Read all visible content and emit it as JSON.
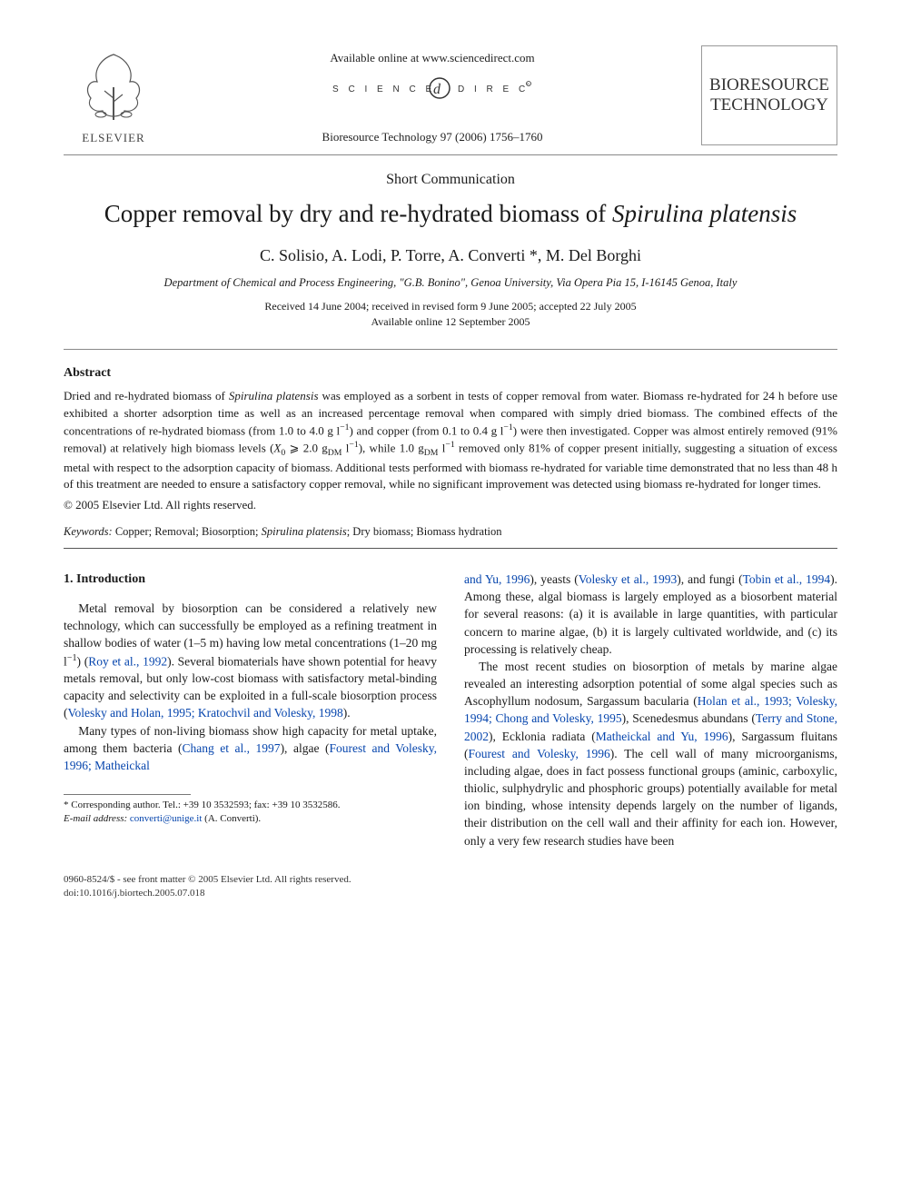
{
  "header": {
    "publisher": "ELSEVIER",
    "available_line": "Available online at www.sciencedirect.com",
    "sciencedirect_label": "SCIENCE DIRECT",
    "citation": "Bioresource Technology 97 (2006) 1756–1760",
    "journal_name_line1": "BIORESOURCE",
    "journal_name_line2": "TECHNOLOGY"
  },
  "article": {
    "type": "Short Communication",
    "title_pre": "Copper removal by dry and re-hydrated biomass of ",
    "title_species": "Spirulina platensis",
    "authors": "C. Solisio, A. Lodi, P. Torre, A. Converti *, M. Del Borghi",
    "affiliation": "Department of Chemical and Process Engineering, \"G.B. Bonino\", Genoa University, Via Opera Pia 15, I-16145 Genoa, Italy",
    "dates_line1": "Received 14 June 2004; received in revised form 9 June 2005; accepted 22 July 2005",
    "dates_line2": "Available online 12 September 2005"
  },
  "abstract": {
    "heading": "Abstract",
    "body_html": "Dried and re-hydrated biomass of <span class=\"italic\">Spirulina platensis</span> was employed as a sorbent in tests of copper removal from water. Biomass re-hydrated for 24 h before use exhibited a shorter adsorption time as well as an increased percentage removal when compared with simply dried biomass. The combined effects of the concentrations of re-hydrated biomass (from 1.0 to 4.0 g l<sup>−1</sup>) and copper (from 0.1 to 0.4 g l<sup>−1</sup>) were then investigated. Copper was almost entirely removed (91% removal) at relatively high biomass levels (<span class=\"italic\">X</span><sub>0</sub> ⩾ 2.0 g<sub>DM</sub> l<sup>−1</sup>), while 1.0 g<sub>DM</sub> l<sup>−1</sup> removed only 81% of copper present initially, suggesting a situation of excess metal with respect to the adsorption capacity of biomass. Additional tests performed with biomass re-hydrated for variable time demonstrated that no less than 48 h of this treatment are needed to ensure a satisfactory copper removal, while no significant improvement was detected using biomass re-hydrated for longer times.",
    "copyright": "© 2005 Elsevier Ltd. All rights reserved."
  },
  "keywords": {
    "label": "Keywords:",
    "text_html": " Copper; Removal; Biosorption; <span class=\"italic\">Spirulina platensis</span>; Dry biomass; Biomass hydration"
  },
  "body": {
    "section_heading": "1. Introduction",
    "col1_p1_html": "Metal removal by biosorption can be considered a relatively new technology, which can successfully be employed as a refining treatment in shallow bodies of water (1–5 m) having low metal concentrations (1–20 mg l<sup>−1</sup>) (<span class=\"ref-link\">Roy et al., 1992</span>). Several biomaterials have shown potential for heavy metals removal, but only low-cost biomass with satisfactory metal-binding capacity and selectivity can be exploited in a full-scale biosorption process (<span class=\"ref-link\">Volesky and Holan, 1995; Kratochvil and Volesky, 1998</span>).",
    "col1_p2_html": "Many types of non-living biomass show high capacity for metal uptake, among them bacteria (<span class=\"ref-link\">Chang et al., 1997</span>), algae (<span class=\"ref-link\">Fourest and Volesky, 1996; Matheickal</span>",
    "col2_p1_html": "<span class=\"ref-link\">and Yu, 1996</span>), yeasts (<span class=\"ref-link\">Volesky et al., 1993</span>), and fungi (<span class=\"ref-link\">Tobin et al., 1994</span>). Among these, algal biomass is largely employed as a biosorbent material for several reasons: (a) it is available in large quantities, with particular concern to marine algae, (b) it is largely cultivated worldwide, and (c) its processing is relatively cheap.",
    "col2_p2_html": "The most recent studies on biosorption of metals by marine algae revealed an interesting adsorption potential of some algal species such as <span class=\"italic\">Ascophyllum nodosum</span>, <span class=\"italic\">Sargassum bacularia</span> (<span class=\"ref-link\">Holan et al., 1993; Volesky, 1994; Chong and Volesky, 1995</span>), <span class=\"italic\">Scenedesmus abundans</span> (<span class=\"ref-link\">Terry and Stone, 2002</span>), <span class=\"italic\">Ecklonia radiata</span> (<span class=\"ref-link\">Matheickal and Yu, 1996</span>), <span class=\"italic\">Sargassum fluitans</span> (<span class=\"ref-link\">Fourest and Volesky, 1996</span>). The cell wall of many microorganisms, including algae, does in fact possess functional groups (aminic, carboxylic, thiolic, sulphydrylic and phosphoric groups) potentially available for metal ion binding, whose intensity depends largely on the number of ligands, their distribution on the cell wall and their affinity for each ion. However, only a very few research studies have been"
  },
  "footnote": {
    "corresp": "* Corresponding author. Tel.: +39 10 3532593; fax: +39 10 3532586.",
    "email_label": "E-mail address:",
    "email": "converti@unige.it",
    "email_attr": " (A. Converti)."
  },
  "footer": {
    "line1": "0960-8524/$ - see front matter © 2005 Elsevier Ltd. All rights reserved.",
    "line2": "doi:10.1016/j.biortech.2005.07.018"
  },
  "colors": {
    "link": "#0645ad",
    "text": "#1a1a1a",
    "rule": "#888"
  }
}
